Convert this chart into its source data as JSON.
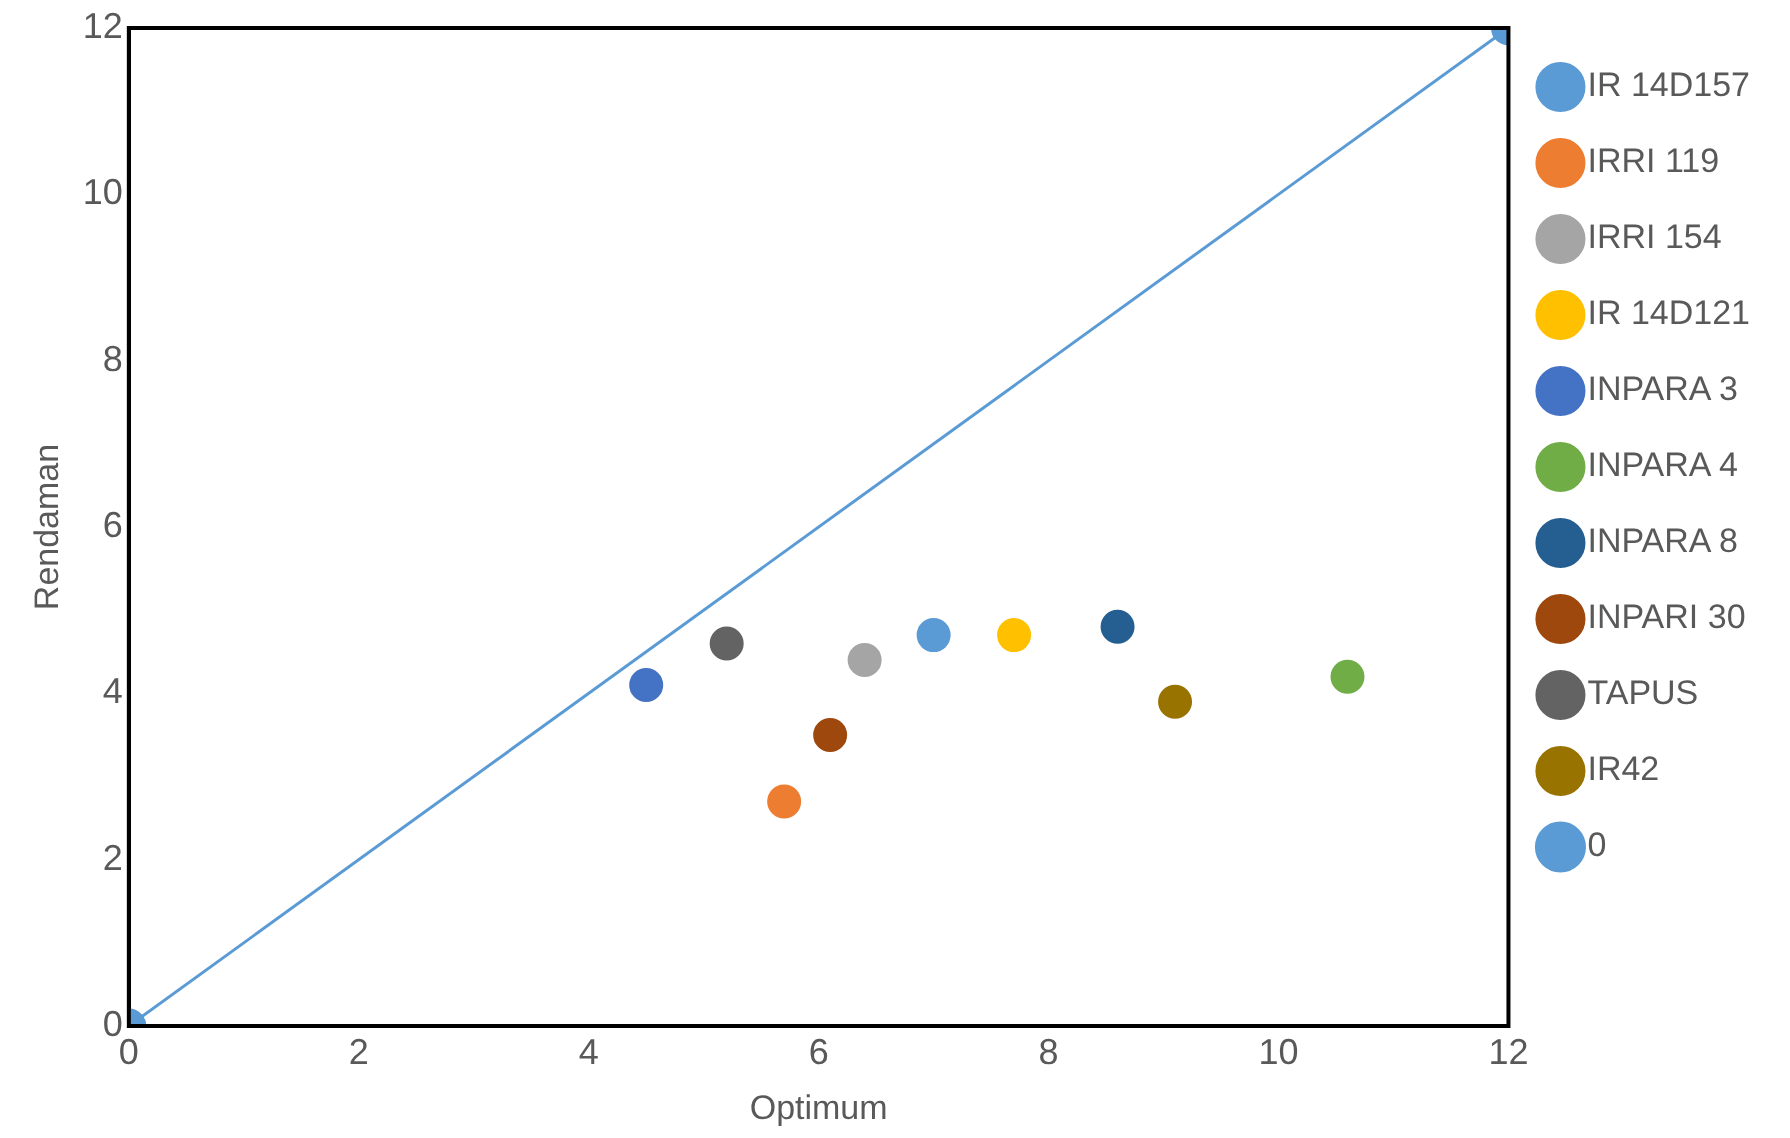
{
  "chart_data": {
    "type": "scatter",
    "xlabel": "Optimum",
    "ylabel": "Rendaman",
    "xlim": [
      0,
      12
    ],
    "ylim": [
      0,
      12
    ],
    "xticks": [
      0,
      2,
      4,
      6,
      8,
      10,
      12
    ],
    "yticks": [
      0,
      2,
      4,
      6,
      8,
      10,
      12
    ],
    "grid": false,
    "legend": "right",
    "marker": "circle",
    "series": [
      {
        "name": "IR 14D157",
        "color": "#5b9bd5",
        "x": [
          7.0
        ],
        "values": [
          4.7
        ]
      },
      {
        "name": "IRRI 119",
        "color": "#ed7d31",
        "x": [
          5.7
        ],
        "values": [
          2.7
        ]
      },
      {
        "name": "IRRI 154",
        "color": "#a5a5a5",
        "x": [
          6.4
        ],
        "values": [
          4.4
        ]
      },
      {
        "name": "IR 14D121",
        "color": "#ffc000",
        "x": [
          7.7
        ],
        "values": [
          4.7
        ]
      },
      {
        "name": "INPARA 3",
        "color": "#4472c4",
        "x": [
          4.5
        ],
        "values": [
          4.1
        ]
      },
      {
        "name": "INPARA 4",
        "color": "#70ad47",
        "x": [
          10.6
        ],
        "values": [
          4.2
        ]
      },
      {
        "name": "INPARA 8",
        "color": "#255e91",
        "x": [
          8.6
        ],
        "values": [
          4.8
        ]
      },
      {
        "name": "INPARI 30",
        "color": "#9e480e",
        "x": [
          6.1
        ],
        "values": [
          3.5
        ]
      },
      {
        "name": "TAPUS",
        "color": "#636363",
        "x": [
          5.2
        ],
        "values": [
          4.6
        ]
      },
      {
        "name": "IR42",
        "color": "#997300",
        "x": [
          9.1
        ],
        "values": [
          3.9
        ]
      },
      {
        "name": "0",
        "color": "#5b9bd5",
        "type": "line",
        "x": [
          0,
          12
        ],
        "values": [
          0,
          12
        ]
      }
    ]
  }
}
